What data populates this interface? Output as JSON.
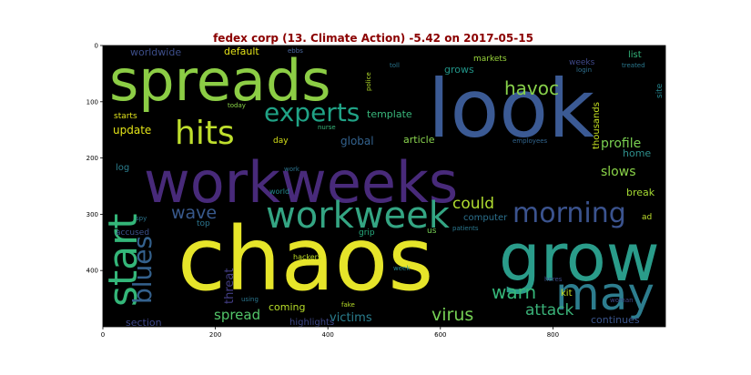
{
  "title": "fedex corp (13. Climate Action) -5.42 on 2017-05-15",
  "x_ticks": [
    "0",
    "200",
    "400",
    "600",
    "800"
  ],
  "y_ticks": [
    "0",
    "100",
    "200",
    "300",
    "400"
  ],
  "words": [
    {
      "t": "chaos"
    },
    {
      "t": "workweeks"
    },
    {
      "t": "look"
    },
    {
      "t": "spreads"
    },
    {
      "t": "grow"
    },
    {
      "t": "workweek"
    },
    {
      "t": "start"
    },
    {
      "t": "may"
    },
    {
      "t": "hits"
    },
    {
      "t": "experts"
    },
    {
      "t": "morning"
    },
    {
      "t": "blues"
    },
    {
      "t": "warn"
    },
    {
      "t": "virus"
    },
    {
      "t": "attack"
    },
    {
      "t": "wave"
    },
    {
      "t": "could"
    },
    {
      "t": "spread"
    },
    {
      "t": "victims"
    },
    {
      "t": "havoc"
    },
    {
      "t": "profile"
    },
    {
      "t": "slows"
    },
    {
      "t": "global"
    },
    {
      "t": "update"
    },
    {
      "t": "default"
    },
    {
      "t": "template"
    },
    {
      "t": "article"
    },
    {
      "t": "worldwide"
    },
    {
      "t": "grows"
    },
    {
      "t": "home"
    },
    {
      "t": "break"
    },
    {
      "t": "section"
    },
    {
      "t": "coming"
    },
    {
      "t": "continues"
    },
    {
      "t": "highlights"
    },
    {
      "t": "thousands"
    },
    {
      "t": "threat"
    },
    {
      "t": "computer"
    },
    {
      "t": "log"
    },
    {
      "t": "kit"
    },
    {
      "t": "site"
    },
    {
      "t": "list"
    },
    {
      "t": "weeks"
    },
    {
      "t": "markets"
    },
    {
      "t": "starts"
    },
    {
      "t": "day"
    },
    {
      "t": "accused"
    },
    {
      "t": "top"
    },
    {
      "t": "grip"
    },
    {
      "t": "us"
    },
    {
      "t": "ad"
    },
    {
      "t": "world"
    },
    {
      "t": "hackers"
    },
    {
      "t": "heres"
    },
    {
      "t": "employees"
    },
    {
      "t": "patients"
    },
    {
      "t": "fake"
    },
    {
      "t": "woman"
    },
    {
      "t": "police"
    },
    {
      "t": "today"
    },
    {
      "t": "nurse"
    },
    {
      "t": "work"
    },
    {
      "t": "spy"
    },
    {
      "t": "week"
    },
    {
      "t": "using"
    },
    {
      "t": "toll"
    },
    {
      "t": "ebbs"
    },
    {
      "t": "login"
    },
    {
      "t": "treated"
    }
  ]
}
